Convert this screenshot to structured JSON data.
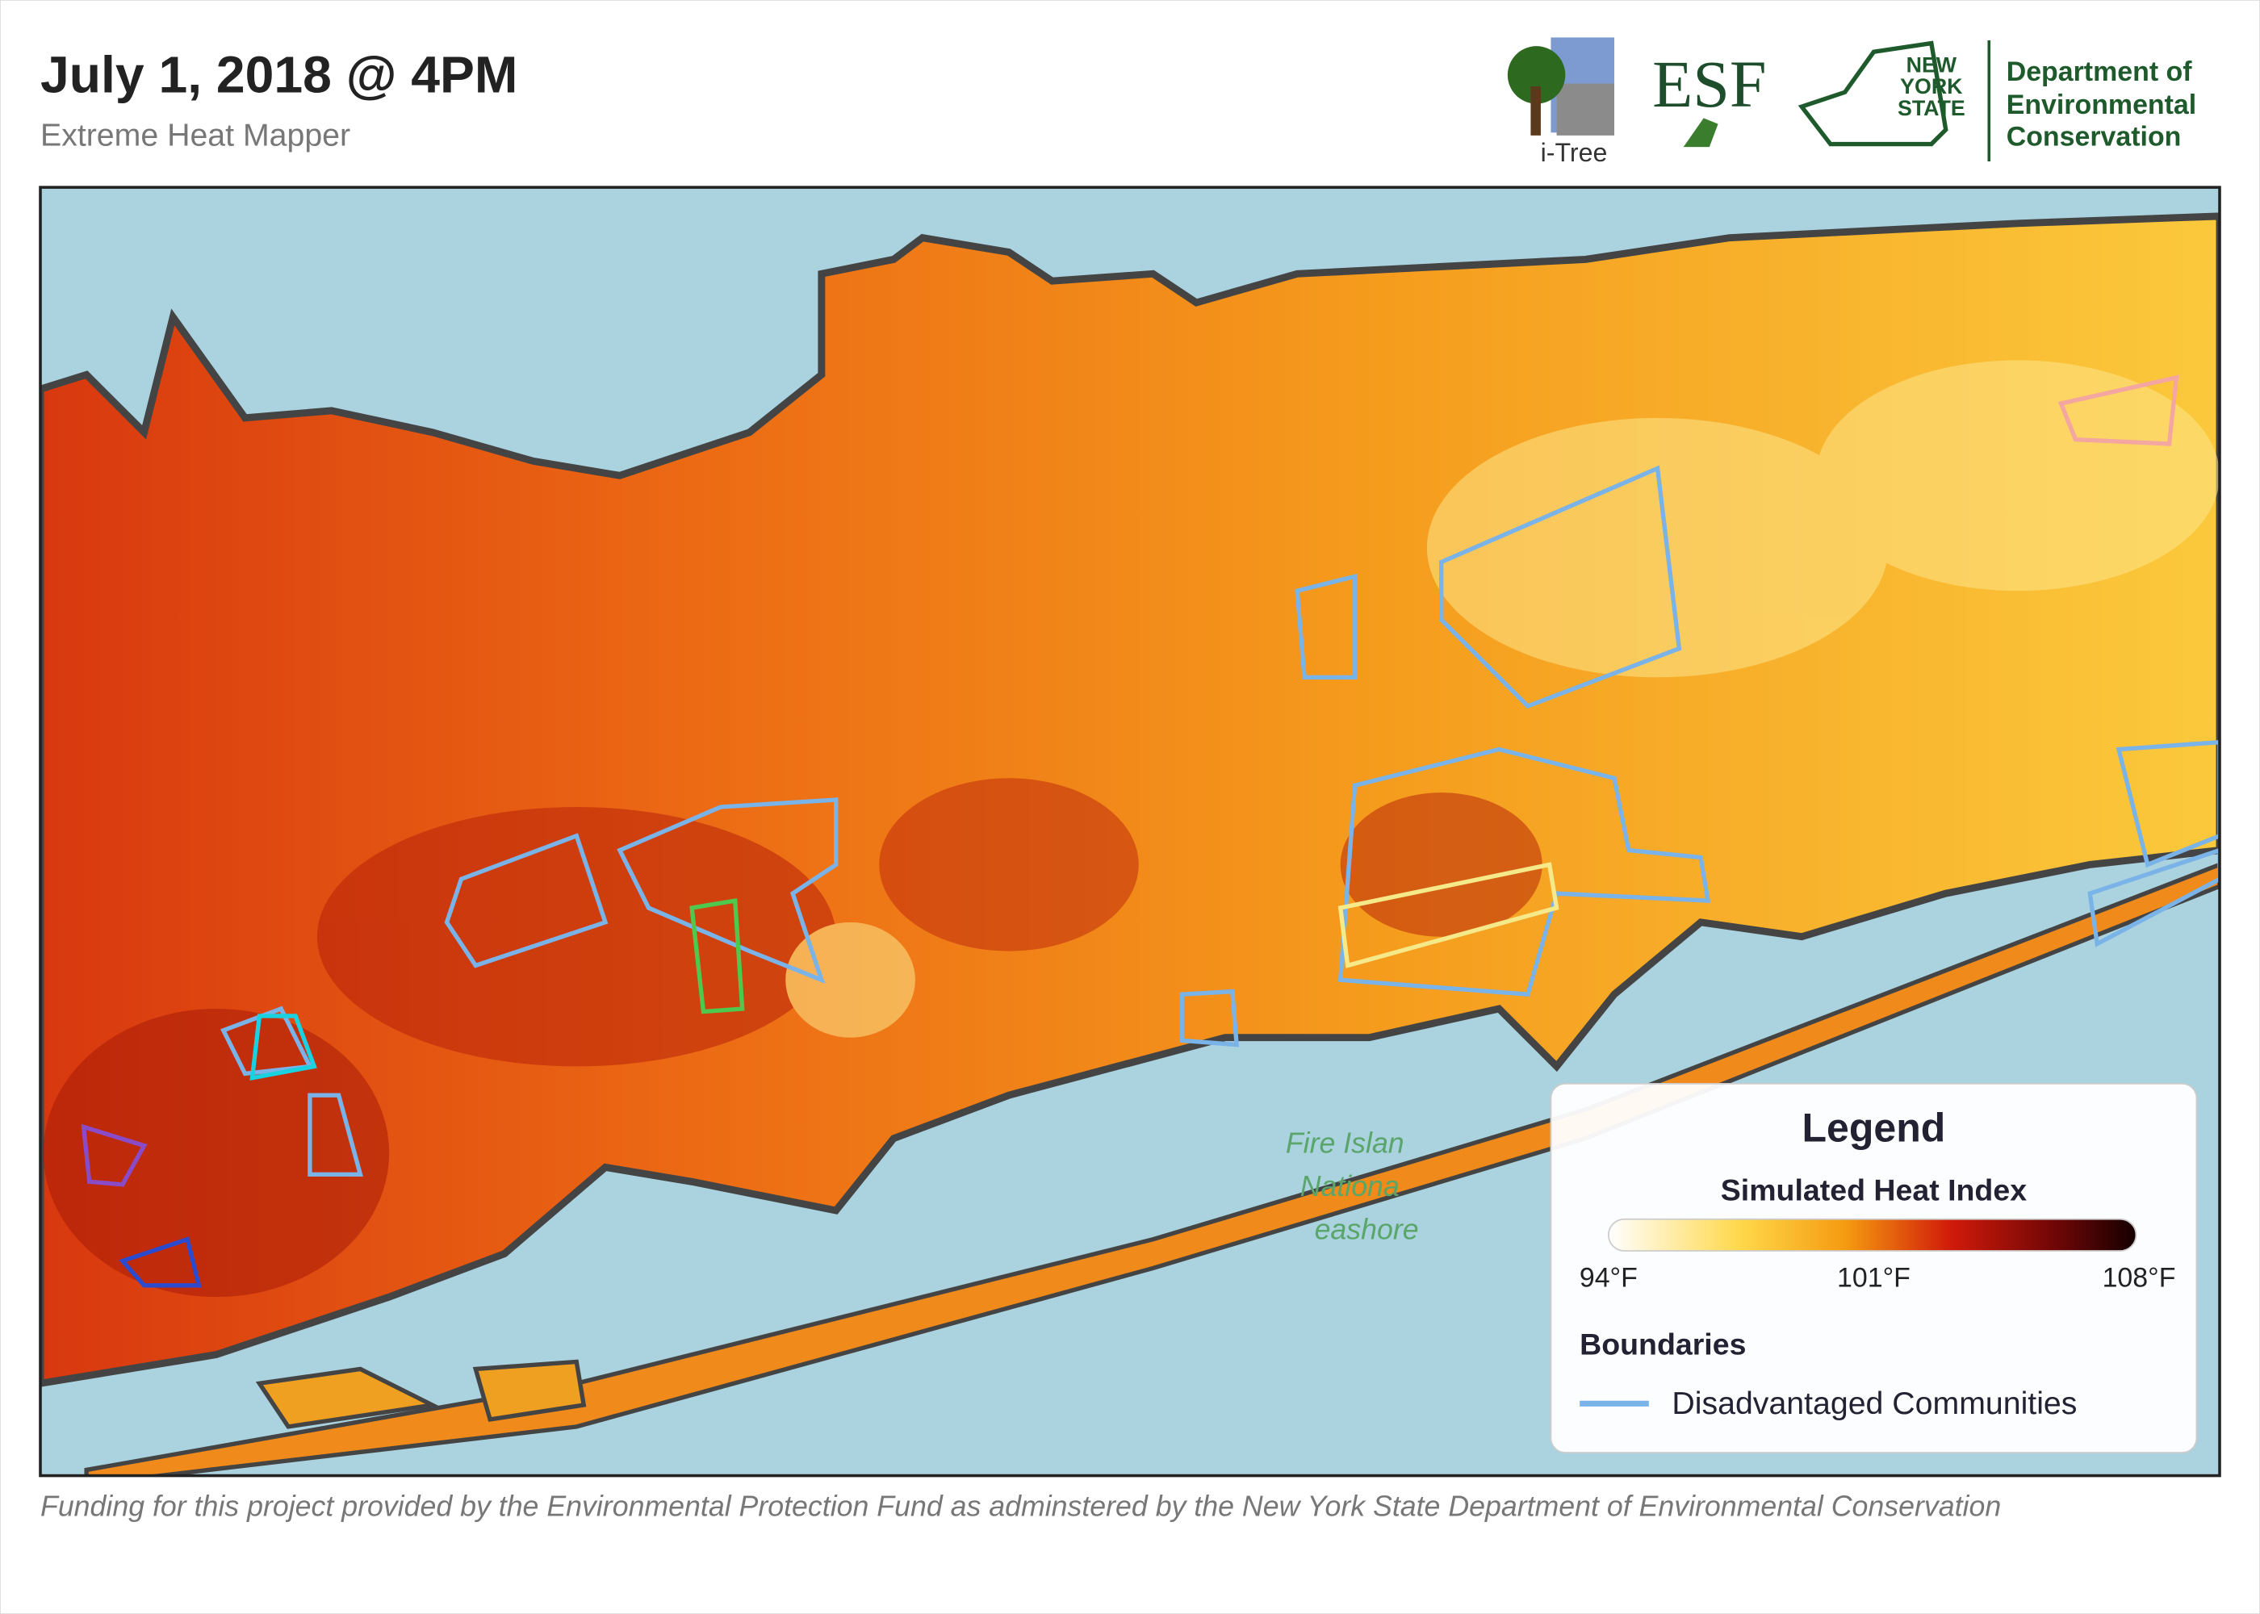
{
  "header": {
    "title": "July 1, 2018 @ 4PM",
    "subtitle": "Extreme Heat Mapper"
  },
  "logos": {
    "itree": "i-Tree",
    "esf": "ESF",
    "nys": [
      "NEW",
      "YORK",
      "STATE"
    ],
    "dec": [
      "Department of",
      "Environmental",
      "Conservation"
    ]
  },
  "map": {
    "labels": [
      "Fire Islan",
      "Nationa",
      "eashore"
    ]
  },
  "legend": {
    "title": "Legend",
    "heat_title": "Simulated Heat Index",
    "ticks": [
      "94°F",
      "101°F",
      "108°F"
    ],
    "boundaries_title": "Boundaries",
    "boundary_item": "Disadvantaged Communities"
  },
  "footer": "Funding for this project provided by the Environmental Protection Fund as adminstered by the New York State Department of Environmental Conservation"
}
